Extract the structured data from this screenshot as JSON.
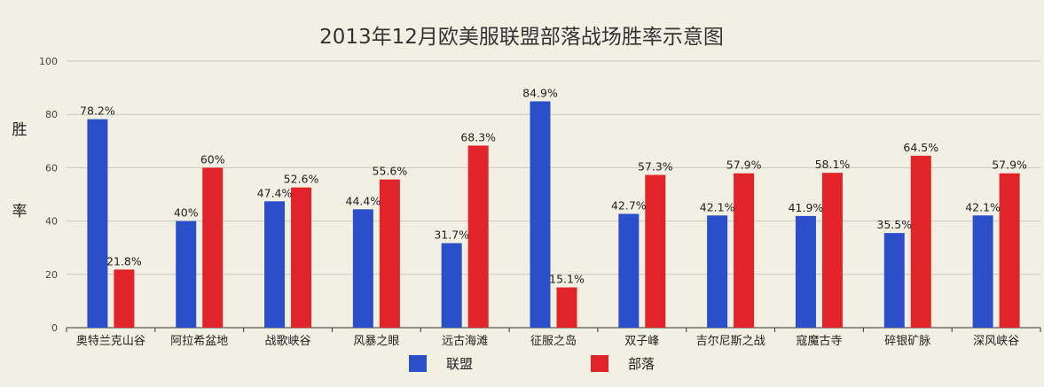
{
  "chart_data": {
    "type": "bar",
    "title": "2013年12月欧美服联盟部落战场胜率示意图",
    "ylabel": "胜率",
    "xlabel": "",
    "ylim": [
      0,
      100
    ],
    "yticks": [
      0,
      20,
      40,
      60,
      80,
      100
    ],
    "grid": true,
    "legend_position": "bottom",
    "categories": [
      "奥特兰克山谷",
      "阿拉希盆地",
      "战歌峡谷",
      "风暴之眼",
      "远古海滩",
      "征服之岛",
      "双子峰",
      "吉尔尼斯之战",
      "寇魔古寺",
      "碎银矿脉",
      "深风峡谷"
    ],
    "series": [
      {
        "name": "联盟",
        "color": "#2a4fc8",
        "values": [
          78.2,
          40,
          47.4,
          44.4,
          31.7,
          84.9,
          42.7,
          42.1,
          41.9,
          35.5,
          42.1
        ],
        "labels": [
          "78.2%",
          "40%",
          "47.4%",
          "44.4%",
          "31.7%",
          "84.9%",
          "42.7%",
          "42.1%",
          "41.9%",
          "35.5%",
          "42.1%"
        ]
      },
      {
        "name": "部落",
        "color": "#e0242a",
        "values": [
          21.8,
          60,
          52.6,
          55.6,
          68.3,
          15.1,
          57.3,
          57.9,
          58.1,
          64.5,
          57.9
        ],
        "labels": [
          "21.8%",
          "60%",
          "52.6%",
          "55.6%",
          "68.3%",
          "15.1%",
          "57.3%",
          "57.9%",
          "58.1%",
          "64.5%",
          "57.9%"
        ]
      }
    ]
  }
}
